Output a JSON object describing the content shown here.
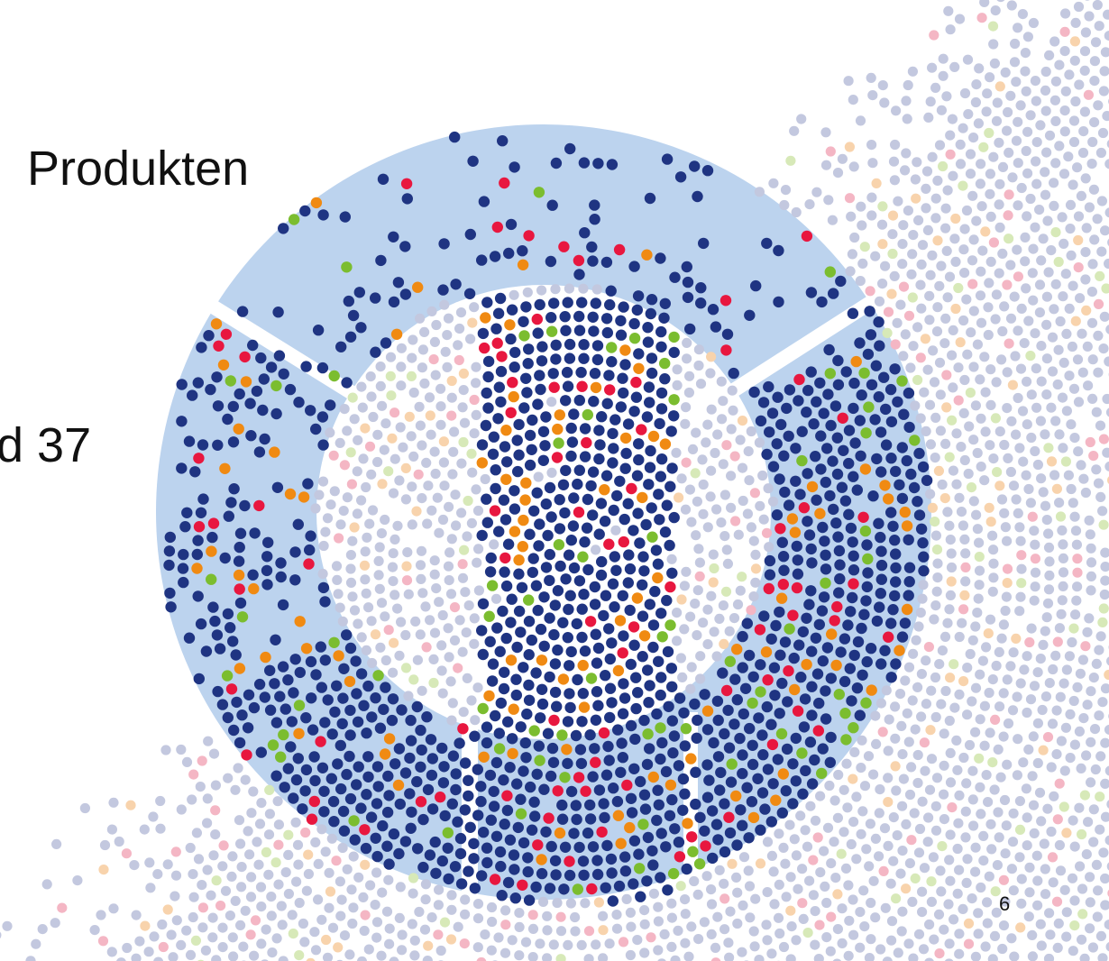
{
  "slide": {
    "heading": "Produkten",
    "fragment": "d 37",
    "page_number": "6"
  }
}
